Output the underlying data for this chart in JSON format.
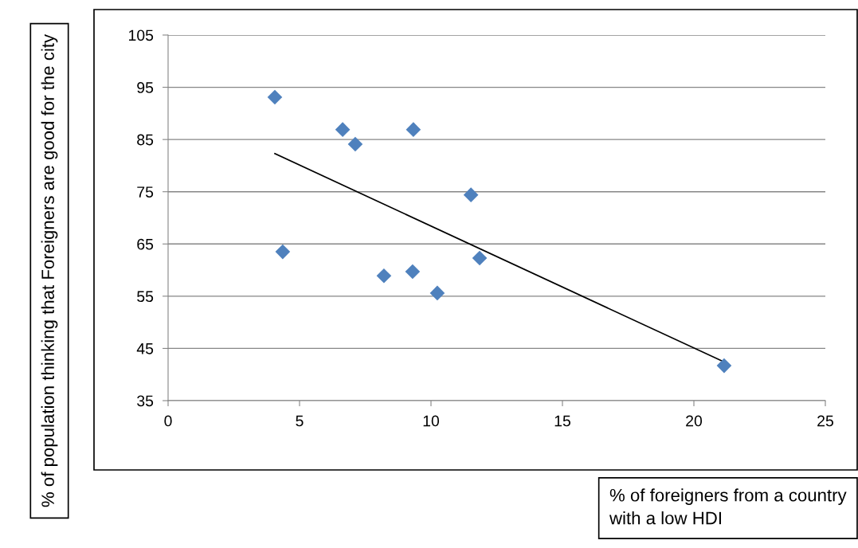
{
  "chart_data": {
    "type": "scatter",
    "xlabel": "% of foreigners from a country with a low HDI",
    "ylabel": "% of population thinking that Foreigners are good for the city",
    "xlim": [
      0,
      25
    ],
    "xticks": [
      0,
      5,
      10,
      15,
      20,
      25
    ],
    "ylim": [
      35,
      105
    ],
    "yticks": [
      35,
      45,
      55,
      65,
      75,
      85,
      95,
      105
    ],
    "grid": "y",
    "legend": false,
    "series": [
      {
        "color": "#4f81bd",
        "marker": "diamond",
        "x": [
          4.06,
          6.64,
          7.12,
          9.33,
          11.52,
          4.36,
          8.21,
          9.3,
          10.24,
          11.85,
          21.15
        ],
        "values": [
          93.1,
          86.9,
          84.1,
          86.9,
          74.4,
          63.5,
          58.9,
          59.7,
          55.6,
          62.3,
          41.7
        ]
      },
      {
        "type": "line",
        "color": "#000000",
        "marker": "none",
        "line_style": "solid",
        "x": [
          4.06,
          21.15
        ],
        "values": [
          82.3,
          42.4
        ]
      }
    ]
  }
}
